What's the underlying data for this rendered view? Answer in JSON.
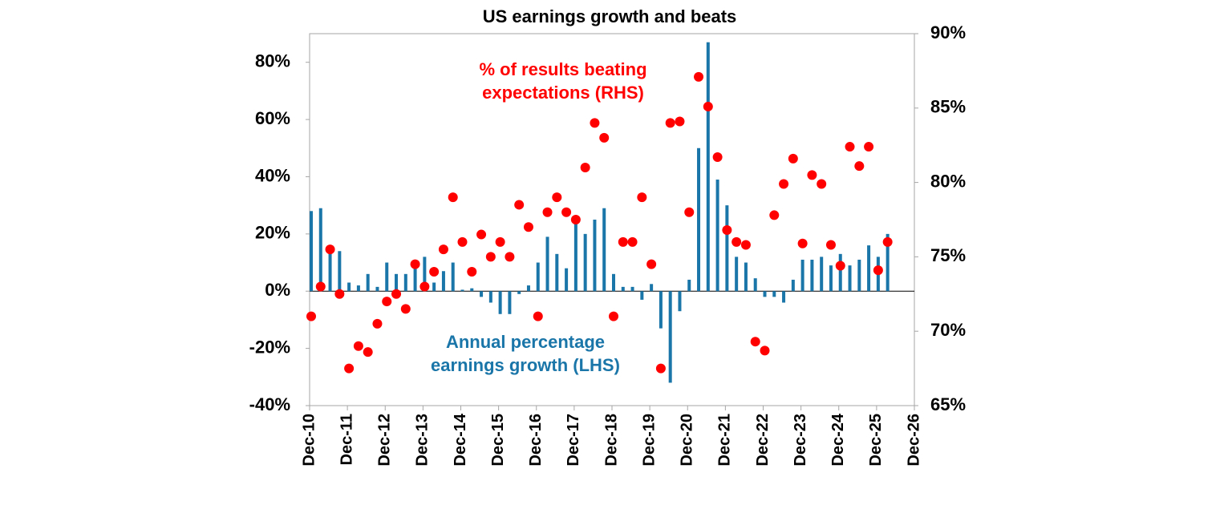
{
  "chart_data": {
    "type": "bar-scatter",
    "title": "US earnings growth and beats",
    "annotations": [
      {
        "lines": [
          "% of results beating",
          "expectations (RHS)"
        ],
        "color": "#ff0000"
      },
      {
        "lines": [
          "Annual percentage",
          "earnings growth (LHS)"
        ],
        "color": "#1a75a8"
      }
    ],
    "x": [
      0,
      1,
      2,
      3,
      4,
      5,
      6,
      7,
      8,
      9,
      10,
      11,
      12,
      13,
      14,
      15,
      16,
      17,
      18,
      19,
      20,
      21,
      22,
      23,
      24,
      25,
      26,
      27,
      28,
      29,
      30,
      31,
      32,
      33,
      34,
      35,
      36,
      37,
      38,
      39,
      40,
      41,
      42,
      43,
      44,
      45,
      46,
      47,
      48,
      49,
      50,
      51,
      52,
      53,
      54,
      55,
      56,
      57,
      58,
      59,
      60,
      61
    ],
    "xlim": [
      0,
      64
    ],
    "xticks": [
      {
        "value": 0,
        "label": "Dec-10"
      },
      {
        "value": 4,
        "label": "Dec-11"
      },
      {
        "value": 8,
        "label": "Dec-12"
      },
      {
        "value": 12,
        "label": "Dec-13"
      },
      {
        "value": 16,
        "label": "Dec-14"
      },
      {
        "value": 20,
        "label": "Dec-15"
      },
      {
        "value": 24,
        "label": "Dec-16"
      },
      {
        "value": 28,
        "label": "Dec-17"
      },
      {
        "value": 32,
        "label": "Dec-18"
      },
      {
        "value": 36,
        "label": "Dec-19"
      },
      {
        "value": 40,
        "label": "Dec-20"
      },
      {
        "value": 44,
        "label": "Dec-21"
      },
      {
        "value": 48,
        "label": "Dec-22"
      },
      {
        "value": 52,
        "label": "Dec-23"
      },
      {
        "value": 56,
        "label": "Dec-24"
      },
      {
        "value": 60,
        "label": "Dec-25"
      },
      {
        "value": 64,
        "label": "Dec-26"
      }
    ],
    "ylim": [
      -40,
      90
    ],
    "yticks": [
      {
        "value": -40,
        "label": "-40%"
      },
      {
        "value": -20,
        "label": "-20%"
      },
      {
        "value": 0,
        "label": "0%"
      },
      {
        "value": 20,
        "label": "20%"
      },
      {
        "value": 40,
        "label": "40%"
      },
      {
        "value": 60,
        "label": "60%"
      },
      {
        "value": 80,
        "label": "80%"
      }
    ],
    "y2lim": [
      65,
      90
    ],
    "y2ticks": [
      {
        "value": 65,
        "label": "65%"
      },
      {
        "value": 70,
        "label": "70%"
      },
      {
        "value": 75,
        "label": "75%"
      },
      {
        "value": 80,
        "label": "80%"
      },
      {
        "value": 85,
        "label": "85%"
      },
      {
        "value": 90,
        "label": "90%"
      }
    ],
    "series": [
      {
        "type": "bar",
        "color": "#1a75a8",
        "values": [
          28,
          29,
          15,
          14,
          3,
          2,
          6,
          1.5,
          10,
          6,
          6,
          9,
          12,
          3,
          7,
          10,
          0.5,
          1,
          -2,
          -4,
          -8,
          -8,
          -1,
          2,
          10,
          19,
          13,
          8,
          24,
          20,
          25,
          29,
          6,
          1.5,
          1.5,
          -3,
          2.5,
          -13,
          -32,
          -7,
          4,
          50,
          87,
          39,
          30,
          12,
          10,
          4.5,
          -2,
          -2,
          -4,
          4,
          11,
          11,
          12,
          9,
          13,
          9,
          11,
          16,
          12,
          20
        ]
      },
      {
        "type": "scatter",
        "axis": "y2",
        "color": "#ff0000",
        "values": [
          71,
          73,
          75.5,
          72.5,
          67.5,
          69,
          68.6,
          70.5,
          72,
          72.5,
          71.5,
          74.5,
          73,
          74,
          75.5,
          79,
          76,
          74,
          76.5,
          75,
          76,
          75,
          78.5,
          77,
          71,
          78,
          79,
          78,
          77.5,
          81,
          84,
          83,
          71,
          76,
          76,
          79,
          74.5,
          67.5,
          84,
          84.1,
          78,
          87.1,
          85.1,
          81.7,
          76.8,
          76,
          75.8,
          69.3,
          68.7,
          77.8,
          79.9,
          81.6,
          75.9,
          80.5,
          79.9,
          75.8,
          74.4,
          82.4,
          81.1,
          82.4,
          74.1,
          76
        ]
      }
    ]
  }
}
